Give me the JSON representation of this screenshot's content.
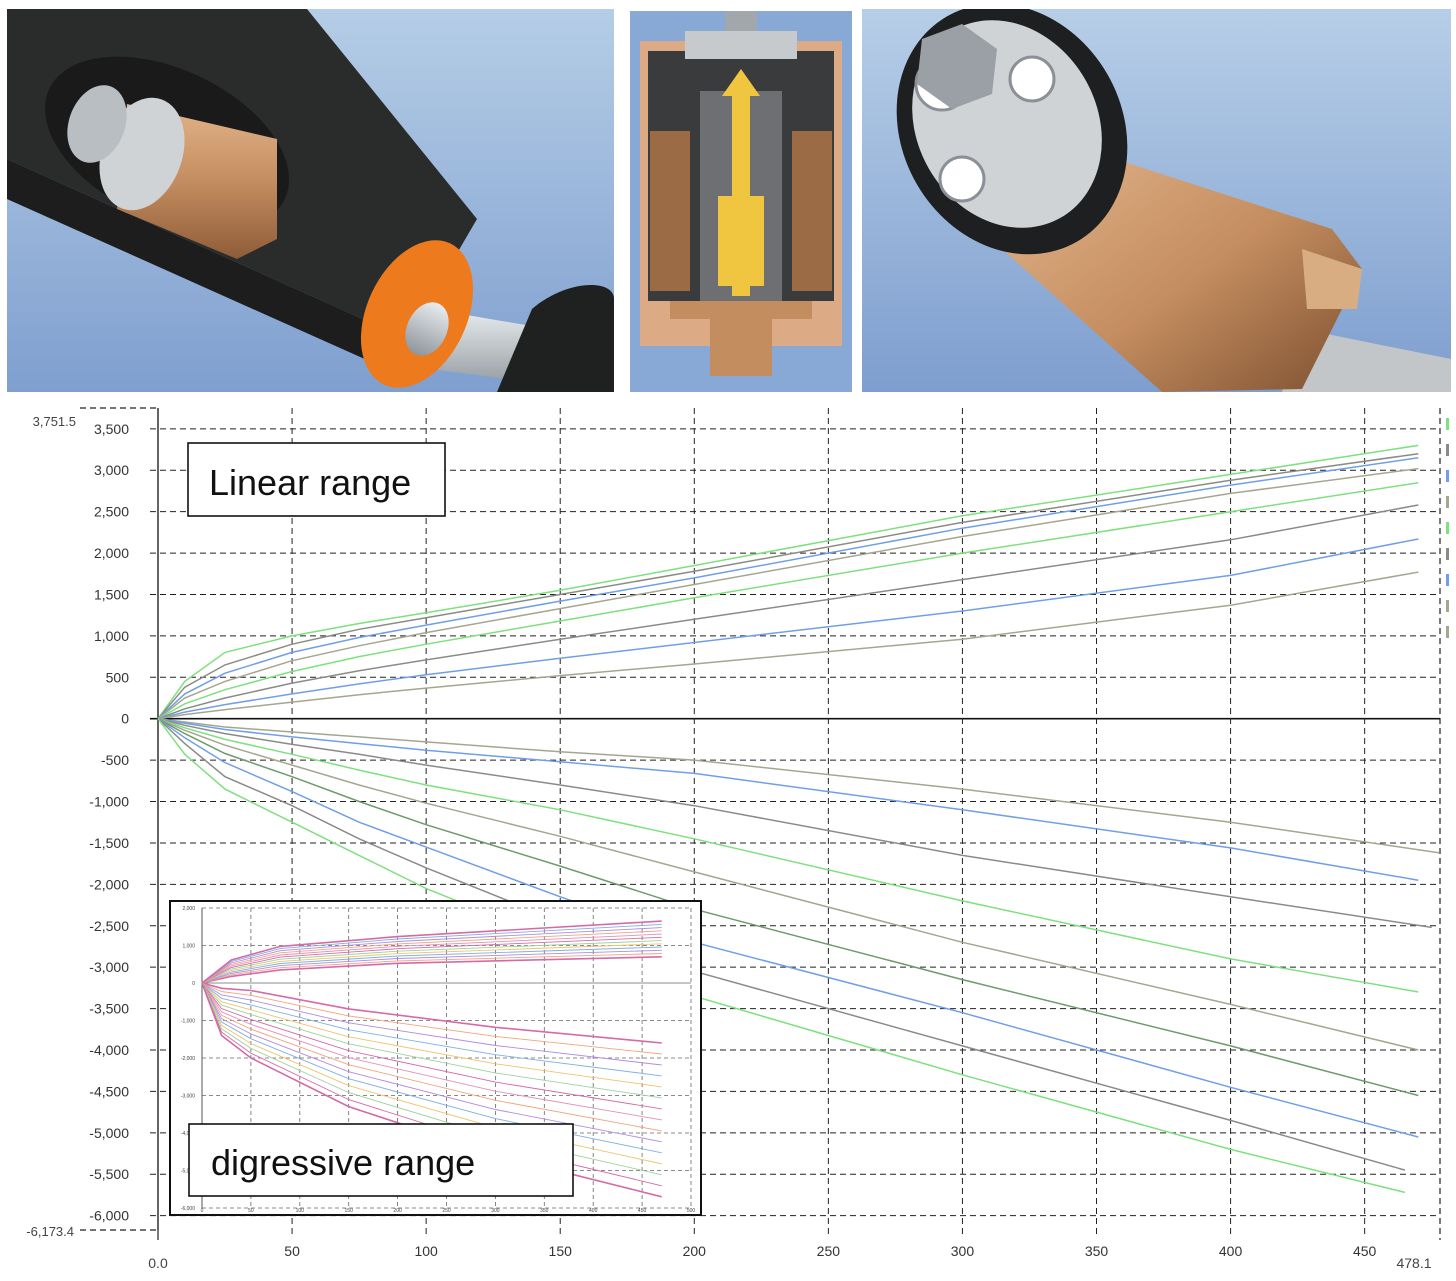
{
  "colors": {
    "green": "#7ee07e",
    "blue": "#6f9fe8",
    "gray": "#8b8b86",
    "olive": "#a6a690",
    "darkgreen": "#6e9a6e",
    "inset_pink": "#d66aa7",
    "copper": "#c99166",
    "orange": "#ee7a1e",
    "brass": "#e9c23d"
  },
  "images": {
    "left": "damper-cutaway-3d-view",
    "center": "valve-cross-section",
    "right": "valve-assembly-3d-view"
  },
  "labels": {
    "linear": "Linear range",
    "digressive": "digressive range"
  },
  "chart_data": [
    {
      "type": "line",
      "x_min_label": "0.0",
      "x_max_label": "478.1",
      "y_max_label": "3,751.5",
      "y_min_label": "-6,173.4",
      "xlim": [
        0,
        478.1
      ],
      "ylim": [
        -6173.4,
        3751.5
      ],
      "x_ticks": [
        50,
        100,
        150,
        200,
        250,
        300,
        350,
        400,
        450
      ],
      "x_tick_labels": [
        "50",
        "100",
        "150",
        "200",
        "250",
        "300",
        "350",
        "400",
        "450"
      ],
      "y_ticks": [
        3500,
        3000,
        2500,
        2000,
        1500,
        1000,
        500,
        0,
        -500,
        -1000,
        -1500,
        -2000,
        -2500,
        -3000,
        -3500,
        -4000,
        -4500,
        -5000,
        -5500,
        -6000
      ],
      "y_tick_labels": [
        "3,500",
        "3,000",
        "2,500",
        "2,000",
        "1,500",
        "1,000",
        "500",
        "0",
        "-500",
        "-1,000",
        "-1,500",
        "-2,000",
        "-2,500",
        "-3,000",
        "-3,500",
        "-4,000",
        "-4,500",
        "-5,000",
        "-5,500",
        "-6,000"
      ],
      "grid": true,
      "series": [
        {
          "color": "green",
          "points": [
            [
              0,
              0
            ],
            [
              10,
              450
            ],
            [
              25,
              800
            ],
            [
              50,
              1000
            ],
            [
              75,
              1150
            ],
            [
              100,
              1280
            ],
            [
              150,
              1550
            ],
            [
              200,
              1850
            ],
            [
              300,
              2450
            ],
            [
              400,
              2950
            ],
            [
              470,
              3300
            ]
          ]
        },
        {
          "color": "gray",
          "points": [
            [
              0,
              0
            ],
            [
              10,
              380
            ],
            [
              25,
              650
            ],
            [
              50,
              900
            ],
            [
              75,
              1080
            ],
            [
              100,
              1220
            ],
            [
              150,
              1500
            ],
            [
              200,
              1780
            ],
            [
              300,
              2370
            ],
            [
              400,
              2880
            ],
            [
              470,
              3200
            ]
          ]
        },
        {
          "color": "blue",
          "points": [
            [
              0,
              0
            ],
            [
              10,
              300
            ],
            [
              25,
              550
            ],
            [
              50,
              800
            ],
            [
              75,
              980
            ],
            [
              100,
              1130
            ],
            [
              150,
              1420
            ],
            [
              200,
              1700
            ],
            [
              300,
              2300
            ],
            [
              400,
              2820
            ],
            [
              470,
              3150
            ]
          ]
        },
        {
          "color": "olive",
          "points": [
            [
              0,
              0
            ],
            [
              10,
              250
            ],
            [
              25,
              450
            ],
            [
              50,
              700
            ],
            [
              75,
              880
            ],
            [
              100,
              1040
            ],
            [
              150,
              1330
            ],
            [
              200,
              1620
            ],
            [
              300,
              2200
            ],
            [
              400,
              2720
            ],
            [
              470,
              3020
            ]
          ]
        },
        {
          "color": "green",
          "points": [
            [
              0,
              0
            ],
            [
              10,
              180
            ],
            [
              25,
              350
            ],
            [
              50,
              570
            ],
            [
              75,
              750
            ],
            [
              100,
              900
            ],
            [
              150,
              1180
            ],
            [
              200,
              1460
            ],
            [
              300,
              2000
            ],
            [
              400,
              2500
            ],
            [
              470,
              2850
            ]
          ]
        },
        {
          "color": "gray",
          "points": [
            [
              0,
              0
            ],
            [
              10,
              120
            ],
            [
              25,
              250
            ],
            [
              50,
              430
            ],
            [
              75,
              580
            ],
            [
              100,
              710
            ],
            [
              150,
              960
            ],
            [
              200,
              1200
            ],
            [
              300,
              1680
            ],
            [
              400,
              2160
            ],
            [
              470,
              2580
            ]
          ]
        },
        {
          "color": "blue",
          "points": [
            [
              0,
              0
            ],
            [
              10,
              80
            ],
            [
              25,
              170
            ],
            [
              50,
              300
            ],
            [
              75,
              420
            ],
            [
              100,
              530
            ],
            [
              150,
              730
            ],
            [
              200,
              920
            ],
            [
              300,
              1300
            ],
            [
              400,
              1730
            ],
            [
              470,
              2170
            ]
          ]
        },
        {
          "color": "olive",
          "points": [
            [
              0,
              0
            ],
            [
              10,
              50
            ],
            [
              25,
              110
            ],
            [
              50,
              200
            ],
            [
              75,
              290
            ],
            [
              100,
              370
            ],
            [
              150,
              520
            ],
            [
              200,
              660
            ],
            [
              300,
              960
            ],
            [
              400,
              1370
            ],
            [
              470,
              1770
            ]
          ]
        },
        {
          "color": "olive",
          "points": [
            [
              0,
              0
            ],
            [
              10,
              -40
            ],
            [
              25,
              -100
            ],
            [
              50,
              -160
            ],
            [
              75,
              -220
            ],
            [
              100,
              -280
            ],
            [
              150,
              -400
            ],
            [
              200,
              -500
            ],
            [
              300,
              -850
            ],
            [
              400,
              -1250
            ],
            [
              478,
              -1620
            ]
          ]
        },
        {
          "color": "blue",
          "points": [
            [
              0,
              0
            ],
            [
              10,
              -55
            ],
            [
              25,
              -130
            ],
            [
              50,
              -220
            ],
            [
              75,
              -300
            ],
            [
              100,
              -380
            ],
            [
              150,
              -520
            ],
            [
              200,
              -660
            ],
            [
              300,
              -1100
            ],
            [
              400,
              -1560
            ],
            [
              470,
              -1950
            ]
          ]
        },
        {
          "color": "gray",
          "points": [
            [
              0,
              0
            ],
            [
              10,
              -80
            ],
            [
              25,
              -180
            ],
            [
              50,
              -310
            ],
            [
              75,
              -430
            ],
            [
              100,
              -560
            ],
            [
              150,
              -800
            ],
            [
              200,
              -1050
            ],
            [
              300,
              -1650
            ],
            [
              400,
              -2150
            ],
            [
              475,
              -2520
            ]
          ]
        },
        {
          "color": "green",
          "points": [
            [
              0,
              0
            ],
            [
              10,
              -110
            ],
            [
              25,
              -250
            ],
            [
              50,
              -430
            ],
            [
              75,
              -620
            ],
            [
              100,
              -800
            ],
            [
              150,
              -1100
            ],
            [
              200,
              -1450
            ],
            [
              300,
              -2200
            ],
            [
              400,
              -2900
            ],
            [
              470,
              -3300
            ]
          ]
        },
        {
          "color": "olive",
          "points": [
            [
              0,
              0
            ],
            [
              10,
              -140
            ],
            [
              25,
              -320
            ],
            [
              50,
              -560
            ],
            [
              75,
              -800
            ],
            [
              100,
              -1020
            ],
            [
              150,
              -1420
            ],
            [
              200,
              -1850
            ],
            [
              300,
              -2700
            ],
            [
              400,
              -3450
            ],
            [
              470,
              -4000
            ]
          ]
        },
        {
          "color": "darkgreen",
          "points": [
            [
              0,
              0
            ],
            [
              10,
              -180
            ],
            [
              25,
              -420
            ],
            [
              50,
              -700
            ],
            [
              75,
              -1000
            ],
            [
              100,
              -1280
            ],
            [
              150,
              -1780
            ],
            [
              200,
              -2300
            ],
            [
              300,
              -3150
            ],
            [
              400,
              -3950
            ],
            [
              470,
              -4550
            ]
          ]
        },
        {
          "color": "blue",
          "points": [
            [
              0,
              0
            ],
            [
              10,
              -230
            ],
            [
              25,
              -530
            ],
            [
              50,
              -880
            ],
            [
              75,
              -1250
            ],
            [
              100,
              -1550
            ],
            [
              150,
              -2150
            ],
            [
              200,
              -2700
            ],
            [
              300,
              -3550
            ],
            [
              400,
              -4450
            ],
            [
              470,
              -5050
            ]
          ]
        },
        {
          "color": "gray",
          "points": [
            [
              0,
              0
            ],
            [
              10,
              -300
            ],
            [
              25,
              -700
            ],
            [
              50,
              -1050
            ],
            [
              75,
              -1450
            ],
            [
              100,
              -1800
            ],
            [
              150,
              -2450
            ],
            [
              200,
              -3050
            ],
            [
              300,
              -3950
            ],
            [
              400,
              -4850
            ],
            [
              465,
              -5450
            ]
          ]
        },
        {
          "color": "green",
          "points": [
            [
              0,
              0
            ],
            [
              10,
              -430
            ],
            [
              25,
              -850
            ],
            [
              50,
              -1250
            ],
            [
              75,
              -1650
            ],
            [
              100,
              -2050
            ],
            [
              150,
              -2700
            ],
            [
              200,
              -3350
            ],
            [
              300,
              -4300
            ],
            [
              400,
              -5200
            ],
            [
              465,
              -5720
            ]
          ]
        }
      ]
    },
    {
      "type": "line",
      "xlim": [
        0,
        500
      ],
      "ylim": [
        -6000,
        2000
      ],
      "x_tick_labels": [
        "0",
        "50",
        "100",
        "150",
        "200",
        "250",
        "300",
        "350",
        "400",
        "450",
        "500"
      ],
      "y_tick_labels": [
        "2,000",
        "1,000",
        "0",
        "-1,000",
        "-2,000",
        "-3,000",
        "-4,000",
        "-5,000",
        "-6,000"
      ],
      "y_ticks": [
        2000,
        1000,
        0,
        -1000,
        -2000,
        -3000,
        -4000,
        -5000,
        -6000
      ],
      "grid": true,
      "upper_count": 12,
      "upper_end_range": [
        700,
        1650
      ],
      "lower_count": 15,
      "lower_end_range": [
        -1600,
        -5700
      ]
    }
  ]
}
